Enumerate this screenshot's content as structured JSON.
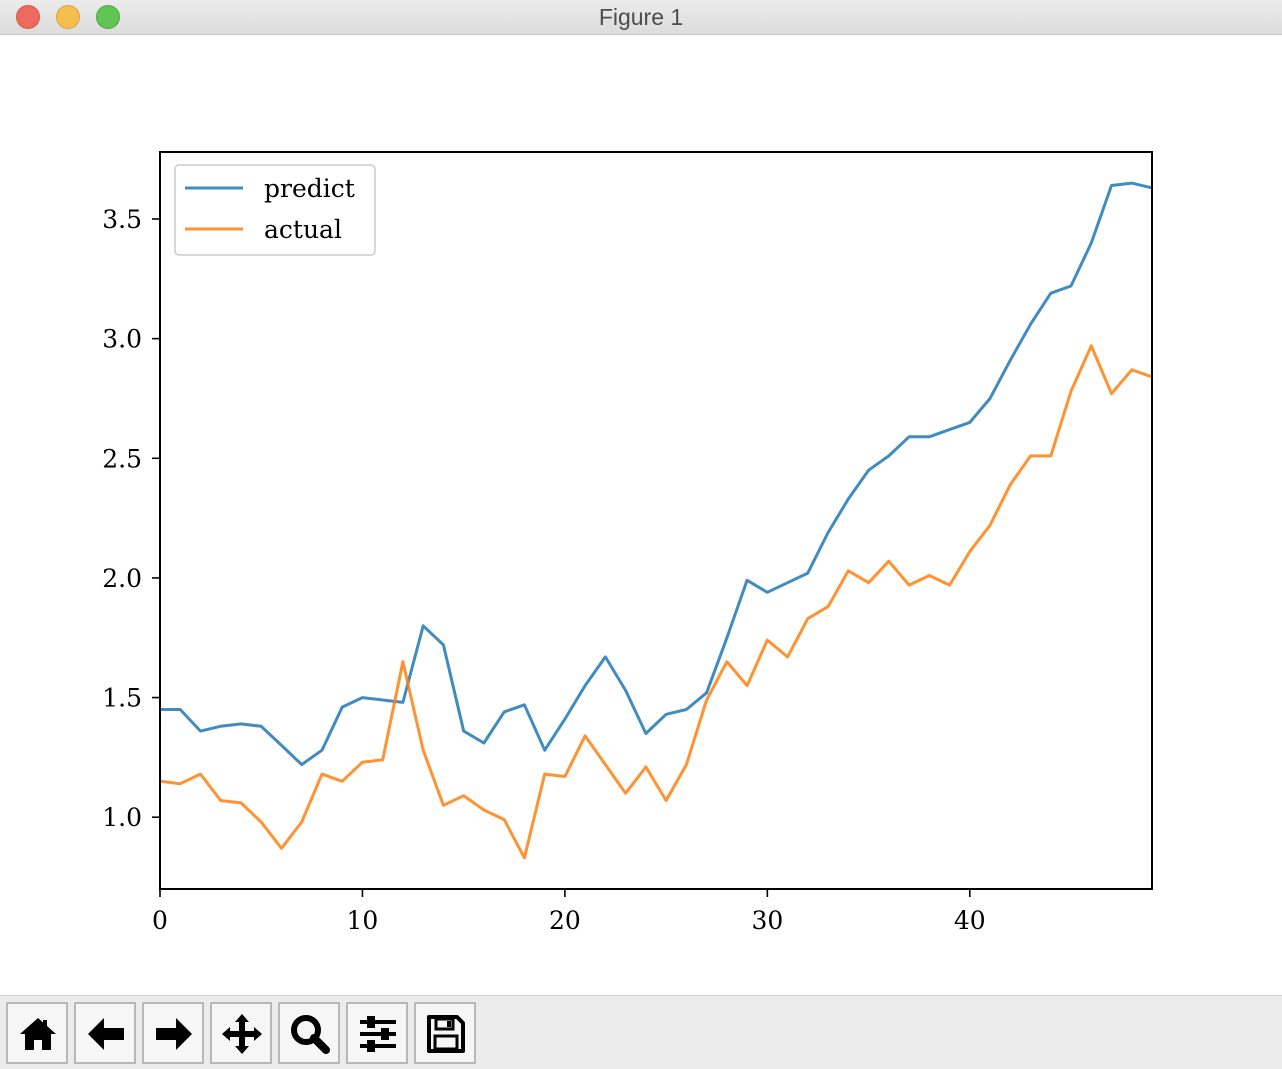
{
  "window": {
    "title": "Figure 1"
  },
  "toolbar": {
    "buttons": [
      {
        "name": "home-button",
        "icon": "home-icon"
      },
      {
        "name": "back-button",
        "icon": "arrow-left-icon"
      },
      {
        "name": "forward-button",
        "icon": "arrow-right-icon"
      },
      {
        "name": "pan-button",
        "icon": "move-icon"
      },
      {
        "name": "zoom-button",
        "icon": "magnifier-icon"
      },
      {
        "name": "configure-subplots-button",
        "icon": "sliders-icon"
      },
      {
        "name": "save-button",
        "icon": "floppy-disk-icon"
      }
    ]
  },
  "chart_data": {
    "type": "line",
    "title": "",
    "xlabel": "",
    "ylabel": "",
    "xlim": [
      0,
      49
    ],
    "ylim": [
      0.7,
      3.78
    ],
    "xticks": [
      0,
      10,
      20,
      30,
      40
    ],
    "xtick_labels": [
      "0",
      "10",
      "20",
      "30",
      "40"
    ],
    "yticks": [
      1.0,
      1.5,
      2.0,
      2.5,
      3.0,
      3.5
    ],
    "ytick_labels": [
      "1.0",
      "1.5",
      "2.0",
      "2.5",
      "3.0",
      "3.5"
    ],
    "grid": false,
    "legend_position": "upper-left",
    "x": [
      0,
      1,
      2,
      3,
      4,
      5,
      6,
      7,
      8,
      9,
      10,
      11,
      12,
      13,
      14,
      15,
      16,
      17,
      18,
      19,
      20,
      21,
      22,
      23,
      24,
      25,
      26,
      27,
      28,
      29,
      30,
      31,
      32,
      33,
      34,
      35,
      36,
      37,
      38,
      39,
      40,
      41,
      42,
      43,
      44,
      45,
      46,
      47,
      48,
      49
    ],
    "series": [
      {
        "name": "predict",
        "color": "#1f77b4",
        "values": [
          1.45,
          1.45,
          1.36,
          1.38,
          1.39,
          1.38,
          1.3,
          1.22,
          1.28,
          1.46,
          1.5,
          1.49,
          1.48,
          1.8,
          1.72,
          1.36,
          1.31,
          1.44,
          1.47,
          1.28,
          1.41,
          1.55,
          1.67,
          1.53,
          1.35,
          1.43,
          1.45,
          1.52,
          1.75,
          1.99,
          1.94,
          1.98,
          2.02,
          2.19,
          2.33,
          2.45,
          2.51,
          2.59,
          2.59,
          2.62,
          2.65,
          2.75,
          2.91,
          3.06,
          3.19,
          3.22,
          3.4,
          3.64,
          3.65,
          3.63
        ]
      },
      {
        "name": "actual",
        "color": "#ff7f0e",
        "values": [
          1.15,
          1.14,
          1.18,
          1.07,
          1.06,
          0.98,
          0.87,
          0.98,
          1.18,
          1.15,
          1.23,
          1.24,
          1.65,
          1.28,
          1.05,
          1.09,
          1.03,
          0.99,
          0.83,
          1.18,
          1.17,
          1.34,
          1.22,
          1.1,
          1.21,
          1.07,
          1.22,
          1.49,
          1.65,
          1.55,
          1.74,
          1.67,
          1.83,
          1.88,
          2.03,
          1.98,
          2.07,
          1.97,
          2.01,
          1.97,
          2.11,
          2.22,
          2.39,
          2.51,
          2.51,
          2.78,
          2.97,
          2.77,
          2.87,
          2.84
        ]
      }
    ]
  }
}
